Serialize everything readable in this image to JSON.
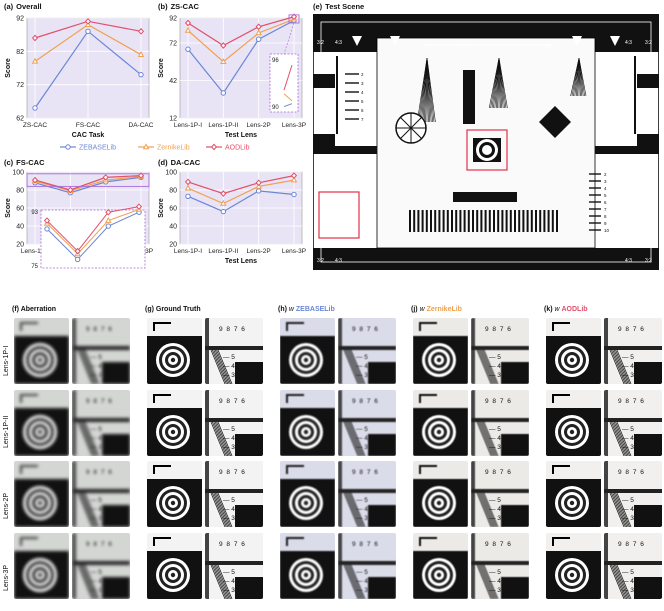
{
  "colors": {
    "zebase": "#6b86d6",
    "zernike": "#f0a050",
    "aodlib": "#e0506a",
    "highlight": "#a86ad8",
    "shade": "#e9e4f5"
  },
  "legend": {
    "items": [
      "ZEBASELib",
      "ZernikeLib",
      "AODLib"
    ]
  },
  "panels": {
    "a": {
      "letter": "(a)",
      "title": "Overall"
    },
    "b": {
      "letter": "(b)",
      "title": "ZS-CAC"
    },
    "c": {
      "letter": "(c)",
      "title": "FS-CAC"
    },
    "d": {
      "letter": "(d)",
      "title": "DA-CAC"
    },
    "e": {
      "letter": "(e)",
      "title": "Test Scene"
    }
  },
  "chart_data": [
    {
      "id": "a",
      "type": "line",
      "title": "Overall",
      "xlabel": "CAC Task",
      "ylabel": "Score",
      "categories": [
        "ZS-CAC",
        "FS-CAC",
        "DA-CAC"
      ],
      "yticks": [
        "62",
        "72",
        "82",
        "92"
      ],
      "ylim": [
        62,
        92
      ],
      "series": [
        {
          "name": "ZEBASELib",
          "values": [
            65,
            88,
            75
          ]
        },
        {
          "name": "ZernikeLib",
          "values": [
            79,
            90,
            81
          ]
        },
        {
          "name": "AODLib",
          "values": [
            86,
            91,
            88
          ]
        }
      ]
    },
    {
      "id": "b",
      "type": "line",
      "title": "ZS-CAC",
      "xlabel": "Test Lens",
      "ylabel": "Score",
      "categories": [
        "Lens-1P-I",
        "Lens-1P-II",
        "Lens-2P",
        "Lens-3P"
      ],
      "yticks": [
        "12",
        "42",
        "72",
        "92"
      ],
      "ylim": [
        12,
        92
      ],
      "series": [
        {
          "name": "ZEBASELib",
          "values": [
            67,
            32,
            75,
            90
          ]
        },
        {
          "name": "ZernikeLib",
          "values": [
            82,
            57,
            80,
            91
          ]
        },
        {
          "name": "AODLib",
          "values": [
            88,
            70,
            85,
            93
          ]
        }
      ],
      "inset": {
        "yticks": [
          "90",
          "96"
        ],
        "ylim": [
          90,
          96
        ]
      }
    },
    {
      "id": "c",
      "type": "line",
      "title": "FS-CAC",
      "xlabel": "Test Lens",
      "ylabel": "Score",
      "categories": [
        "Lens-1P-I",
        "Lens-1P-II",
        "Lens-2P",
        "Lens-3P"
      ],
      "yticks": [
        "20",
        "40",
        "60",
        "80",
        "100"
      ],
      "ylim": [
        20,
        100
      ],
      "series": [
        {
          "name": "ZEBASELib",
          "values": [
            88,
            77,
            89,
            94
          ]
        },
        {
          "name": "ZernikeLib",
          "values": [
            90,
            79,
            91,
            95
          ]
        },
        {
          "name": "AODLib",
          "values": [
            91,
            80,
            94,
            96
          ]
        }
      ],
      "inset": {
        "yticks": [
          "75",
          "93"
        ],
        "ylim": [
          75,
          93
        ]
      }
    },
    {
      "id": "d",
      "type": "line",
      "title": "DA-CAC",
      "xlabel": "Test Lens",
      "ylabel": "Score",
      "categories": [
        "Lens-1P-I",
        "Lens-1P-II",
        "Lens-2P",
        "Lens-3P"
      ],
      "yticks": [
        "20",
        "40",
        "60",
        "80",
        "100"
      ],
      "ylim": [
        20,
        100
      ],
      "series": [
        {
          "name": "ZEBASELib",
          "values": [
            73,
            56,
            79,
            75
          ]
        },
        {
          "name": "ZernikeLib",
          "values": [
            82,
            65,
            84,
            91
          ]
        },
        {
          "name": "AODLib",
          "values": [
            89,
            76,
            88,
            96
          ]
        }
      ]
    }
  ],
  "grid": {
    "columns": [
      {
        "letter": "(f)",
        "prefix": "",
        "name": "Aberration",
        "style": "blur"
      },
      {
        "letter": "(g)",
        "prefix": "",
        "name": "Ground Truth",
        "style": "sharp"
      },
      {
        "letter": "(h)",
        "prefix": "w",
        "name": "ZEBASELib",
        "style": "mid"
      },
      {
        "letter": "(j)",
        "prefix": "w",
        "name": "ZernikeLib",
        "style": "good"
      },
      {
        "letter": "(k)",
        "prefix": "w",
        "name": "AODLib",
        "style": "best"
      }
    ],
    "rows": [
      "Lens-1P-I",
      "Lens-1P-II",
      "Lens-2P",
      "Lens-3P"
    ],
    "digits": "9 8 7 6",
    "scale": [
      "5",
      "4",
      "3"
    ]
  },
  "scene": {
    "corner_labels": [
      "3:2",
      "4:3",
      "4:3",
      "3:2",
      "3:2",
      "4:3",
      "4:3",
      "3:2"
    ],
    "top_numbers": [
      "1",
      "5",
      "10",
      "1",
      "5",
      "10",
      "1"
    ],
    "side_numbers": [
      "2",
      "3",
      "4",
      "5",
      "6",
      "7",
      "8",
      "9",
      "10"
    ]
  }
}
